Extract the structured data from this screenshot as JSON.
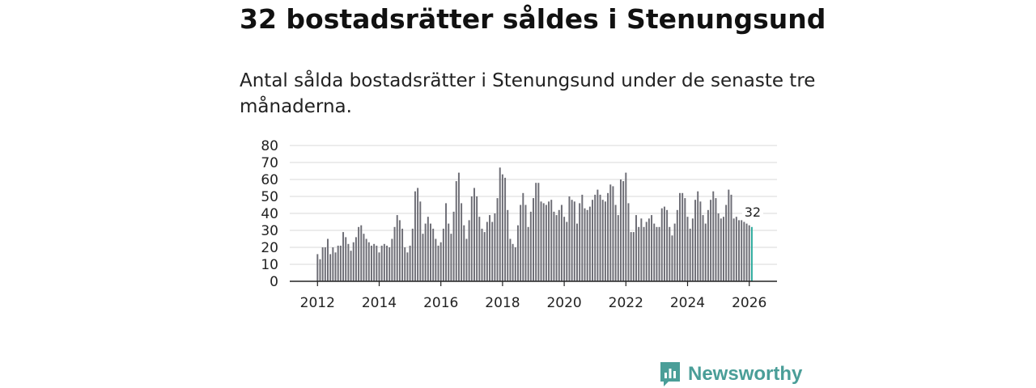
{
  "title": "32 bostadsrätter såldes i Stenungsund",
  "subtitle": "Antal sålda bostadsrätter i Stenungsund under de senaste tre månaderna.",
  "brand": {
    "name": "Newsworthy",
    "color": "#4a9e98",
    "icon": "newsworthy-logo-icon"
  },
  "chart_data": {
    "type": "bar",
    "title": "",
    "xlabel": "",
    "ylabel": "",
    "x_ticks": [
      "2012",
      "2014",
      "2016",
      "2018",
      "2020",
      "2022",
      "2024",
      "2026"
    ],
    "y_ticks": [
      "0",
      "10",
      "20",
      "30",
      "40",
      "50",
      "60",
      "70",
      "80"
    ],
    "ylim": [
      0,
      80
    ],
    "start": "2012-01",
    "x_min_year": 2011.1,
    "x_max_year": 2026.9,
    "bar_color": "#6e6e76",
    "highlight_color": "#2aa99b",
    "highlight_index": 169,
    "highlight_label": "32",
    "values": [
      16,
      13,
      20,
      20,
      25,
      16,
      20,
      17,
      21,
      21,
      29,
      26,
      22,
      18,
      23,
      26,
      32,
      33,
      28,
      25,
      23,
      21,
      22,
      21,
      17,
      21,
      22,
      21,
      20,
      25,
      32,
      39,
      36,
      31,
      20,
      17,
      21,
      31,
      53,
      55,
      47,
      28,
      34,
      38,
      34,
      31,
      25,
      21,
      23,
      31,
      46,
      34,
      28,
      41,
      59,
      64,
      46,
      33,
      25,
      36,
      50,
      55,
      50,
      38,
      31,
      29,
      35,
      39,
      35,
      40,
      49,
      67,
      63,
      61,
      42,
      25,
      22,
      20,
      33,
      45,
      52,
      45,
      32,
      41,
      49,
      58,
      58,
      47,
      46,
      45,
      47,
      48,
      41,
      39,
      42,
      45,
      38,
      35,
      50,
      48,
      47,
      34,
      46,
      51,
      43,
      42,
      44,
      48,
      51,
      54,
      51,
      48,
      47,
      52,
      57,
      56,
      45,
      39,
      60,
      59,
      64,
      46,
      29,
      29,
      39,
      32,
      37,
      32,
      35,
      37,
      39,
      34,
      32,
      32,
      43,
      44,
      42,
      32,
      27,
      34,
      42,
      52,
      52,
      49,
      38,
      31,
      37,
      48,
      53,
      47,
      39,
      34,
      42,
      48,
      53,
      49,
      40,
      37,
      38,
      45,
      54,
      51,
      37,
      38,
      36,
      36,
      35,
      34,
      33,
      32
    ]
  }
}
